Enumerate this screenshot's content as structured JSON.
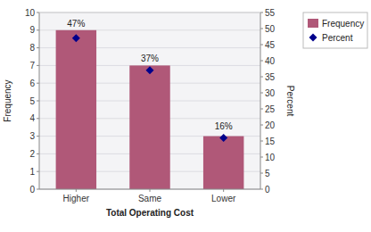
{
  "chart_data": {
    "type": "bar",
    "categories": [
      "Higher",
      "Same",
      "Lower"
    ],
    "xlabel": "Total Operating Cost",
    "ylabel": "Frequency",
    "y2label": "Percent",
    "series": [
      {
        "name": "Frequency",
        "type": "bar",
        "color": "#b05878",
        "values": [
          9,
          7,
          3
        ]
      },
      {
        "name": "Percent",
        "type": "scatter",
        "axis": "y2",
        "color": "#00008b",
        "marker": "diamond",
        "values": [
          47,
          37,
          16
        ],
        "value_labels": [
          "47%",
          "37%",
          "16%"
        ]
      }
    ],
    "ylim": [
      0,
      10
    ],
    "yticks": [
      0,
      1,
      2,
      3,
      4,
      5,
      6,
      7,
      8,
      9,
      10
    ],
    "y2lim": [
      0,
      55
    ],
    "y2ticks": [
      0,
      5,
      10,
      15,
      20,
      25,
      30,
      35,
      40,
      45,
      50,
      55
    ],
    "grid": true,
    "legend": "right",
    "data_labels": true
  }
}
